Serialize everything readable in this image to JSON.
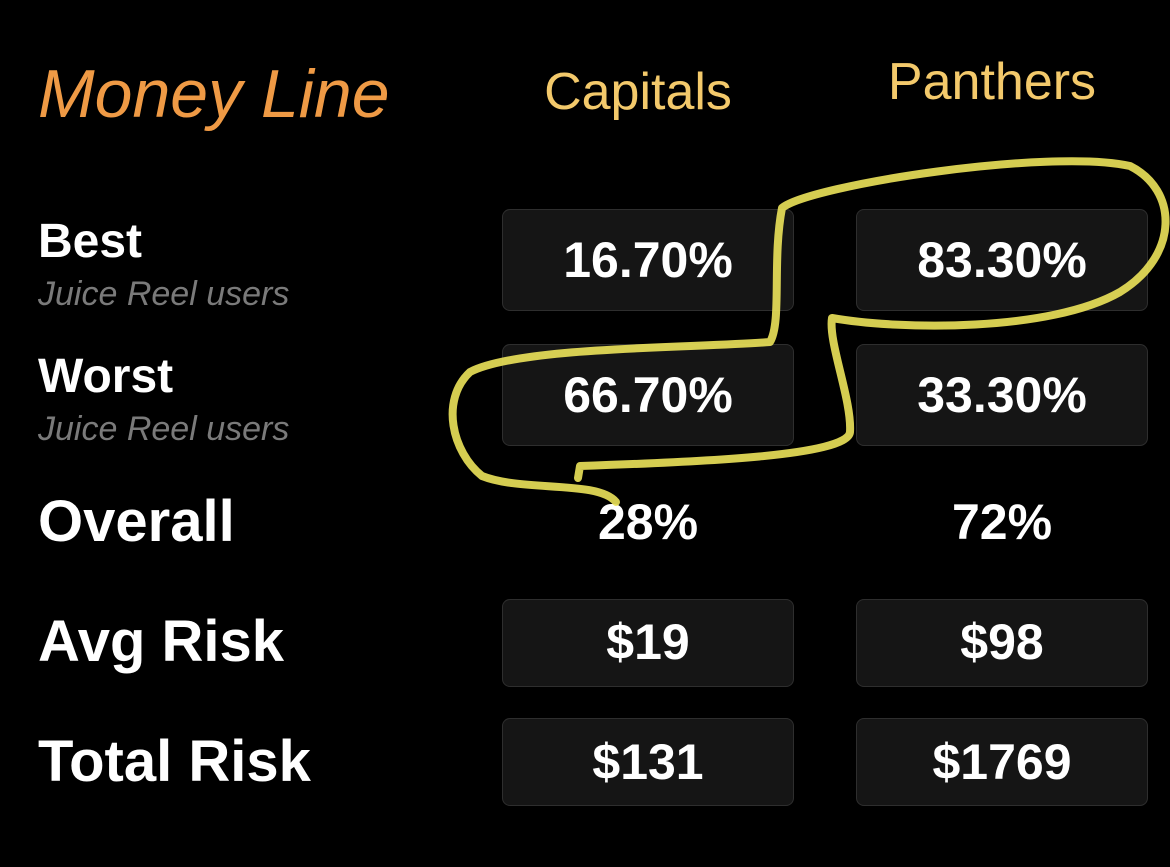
{
  "header": {
    "title": "Money Line",
    "columns": [
      "Capitals",
      "Panthers"
    ]
  },
  "rows": [
    {
      "label": "Best",
      "sublabel": "Juice Reel users",
      "values": [
        "16.70%",
        "83.30%"
      ]
    },
    {
      "label": "Worst",
      "sublabel": "Juice Reel users",
      "values": [
        "66.70%",
        "33.30%"
      ]
    },
    {
      "label": "Overall",
      "values": [
        "28%",
        "72%"
      ]
    },
    {
      "label": "Avg Risk",
      "values": [
        "$19",
        "$98"
      ]
    },
    {
      "label": "Total Risk",
      "values": [
        "$131",
        "$1769"
      ]
    }
  ]
}
